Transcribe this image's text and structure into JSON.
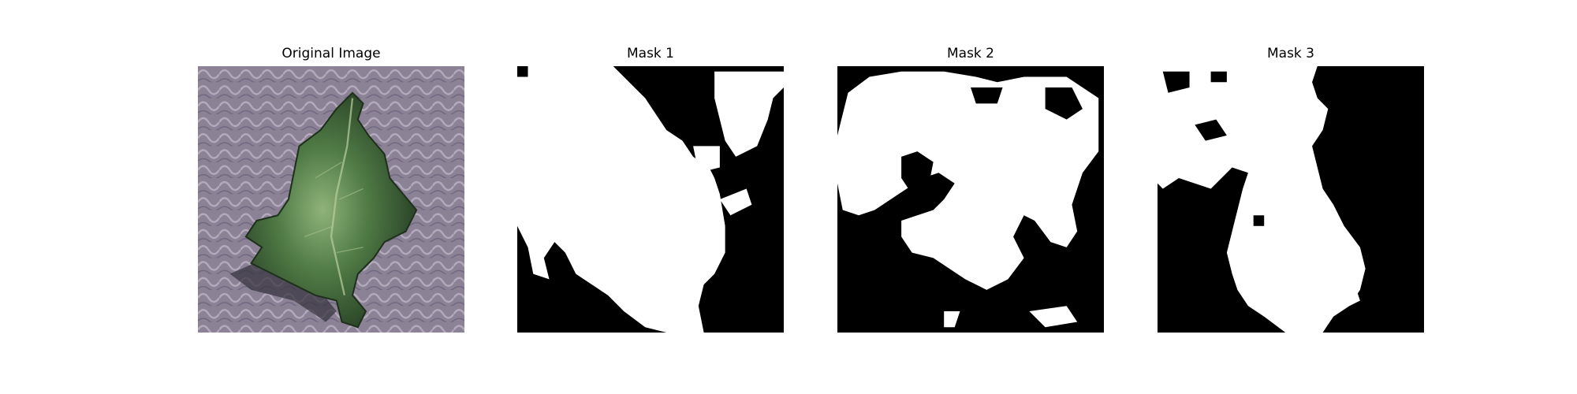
{
  "figure": {
    "panels": [
      {
        "title": "Original Image",
        "kind": "photo",
        "content": "green-leaf-on-purple-fabric"
      },
      {
        "title": "Mask 1",
        "kind": "binary-mask"
      },
      {
        "title": "Mask 2",
        "kind": "binary-mask"
      },
      {
        "title": "Mask 3",
        "kind": "binary-mask"
      }
    ]
  },
  "colors": {
    "background": "#ffffff",
    "mask_foreground": "#ffffff",
    "mask_background": "#000000",
    "photo_background": "#8e8597",
    "leaf_dark": "#2f4a2c",
    "leaf_mid": "#4f7a45",
    "leaf_light": "#9dbb84"
  }
}
